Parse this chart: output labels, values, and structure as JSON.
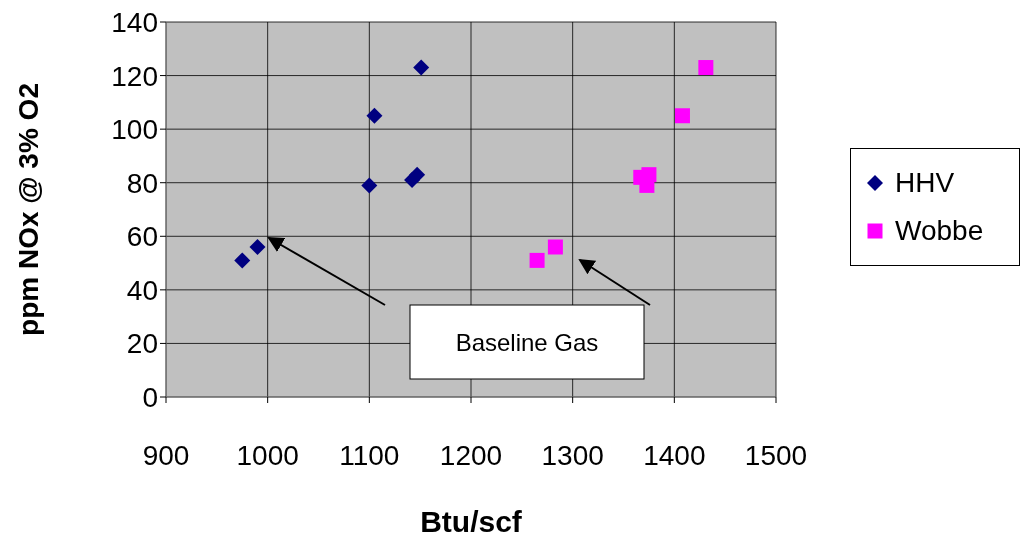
{
  "chart_data": {
    "type": "scatter",
    "xlabel": "Btu/scf",
    "ylabel": "ppm NOx @ 3% O2",
    "xlim": [
      900,
      1500
    ],
    "xticks": [
      900,
      1000,
      1100,
      1200,
      1300,
      1400,
      1500
    ],
    "ylim": [
      0,
      140
    ],
    "yticks": [
      0,
      20,
      40,
      60,
      80,
      100,
      120,
      140
    ],
    "grid": true,
    "legend": "right",
    "series": [
      {
        "name": "HHV",
        "color": "#000080",
        "marker": "diamond",
        "x": [
          975,
          990,
          1100,
          1105,
          1142,
          1147,
          1151
        ],
        "values": [
          51,
          56,
          79,
          105,
          81,
          83,
          123
        ]
      },
      {
        "name": "Wobbe",
        "color": "#ff00ff",
        "marker": "square",
        "x": [
          1265,
          1283,
          1367,
          1373,
          1375,
          1408,
          1431
        ],
        "values": [
          51,
          56,
          82,
          79,
          83,
          105,
          123
        ]
      }
    ],
    "annotations": [
      "Baseline Gas"
    ]
  }
}
